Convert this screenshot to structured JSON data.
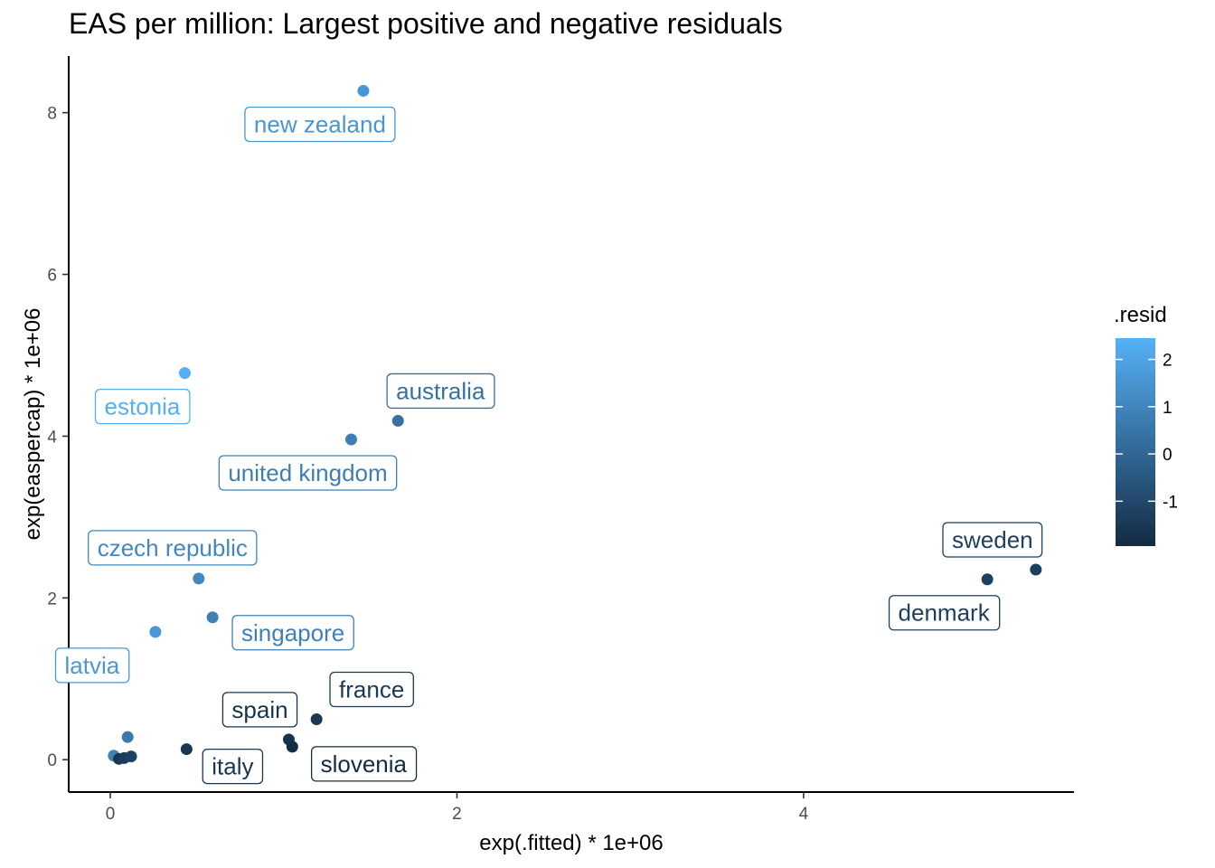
{
  "chart_data": {
    "type": "scatter",
    "title": "EAS per million: Largest positive and negative residuals",
    "xlabel": "exp(.fitted) * 1e+06",
    "ylabel": "exp(easpercap) * 1e+06",
    "xlim": [
      -0.24,
      5.56
    ],
    "ylim": [
      -0.4,
      8.7
    ],
    "x_ticks": [
      0,
      2,
      4
    ],
    "y_ticks": [
      0,
      2,
      4,
      6,
      8
    ],
    "grid": false,
    "color_legend": {
      "title": ".resid",
      "placement": "right",
      "range": [
        -1.95,
        2.45
      ],
      "ticks": [
        -1,
        0,
        1,
        2
      ],
      "low_color": "#132B43",
      "high_color": "#56B1F7"
    },
    "points": [
      {
        "x": 1.46,
        "y": 8.27,
        "resid": 1.55,
        "label": "new zealand"
      },
      {
        "x": 0.43,
        "y": 4.78,
        "resid": 2.4,
        "label": "estonia"
      },
      {
        "x": 1.66,
        "y": 4.19,
        "resid": 0.35,
        "label": "australia"
      },
      {
        "x": 1.39,
        "y": 3.96,
        "resid": 0.8,
        "label": "united kingdom"
      },
      {
        "x": 0.51,
        "y": 2.24,
        "resid": 1.1,
        "label": "czech republic"
      },
      {
        "x": 0.59,
        "y": 1.76,
        "resid": 0.85,
        "label": "singapore"
      },
      {
        "x": 0.26,
        "y": 1.58,
        "resid": 1.6,
        "label": "latvia"
      },
      {
        "x": 5.34,
        "y": 2.35,
        "resid": -1.3,
        "label": "sweden"
      },
      {
        "x": 5.06,
        "y": 2.23,
        "resid": -1.25,
        "label": "denmark"
      },
      {
        "x": 1.19,
        "y": 0.5,
        "resid": -1.5,
        "label": "france"
      },
      {
        "x": 1.03,
        "y": 0.25,
        "resid": -1.7,
        "label": "spain"
      },
      {
        "x": 0.44,
        "y": 0.13,
        "resid": -1.55,
        "label": "italy"
      },
      {
        "x": 1.05,
        "y": 0.16,
        "resid": -1.9,
        "label": "slovenia"
      },
      {
        "x": 0.1,
        "y": 0.28,
        "resid": 0.6,
        "label": ""
      },
      {
        "x": 0.02,
        "y": 0.05,
        "resid": 0.9,
        "label": ""
      },
      {
        "x": 0.05,
        "y": 0.01,
        "resid": -1.6,
        "label": ""
      },
      {
        "x": 0.08,
        "y": 0.02,
        "resid": -1.4,
        "label": ""
      },
      {
        "x": 0.12,
        "y": 0.04,
        "resid": -1.2,
        "label": ""
      }
    ]
  }
}
